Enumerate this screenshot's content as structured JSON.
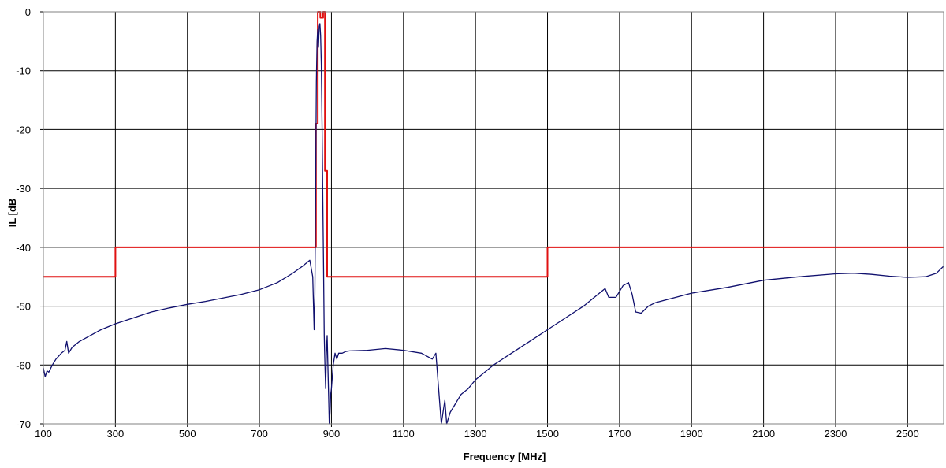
{
  "chart_data": {
    "type": "line",
    "title": "",
    "xlabel": "Frequency [MHz]",
    "ylabel": "IL [dB",
    "xlim": [
      100,
      2600
    ],
    "ylim": [
      -70,
      0
    ],
    "x_ticks": [
      100,
      300,
      500,
      700,
      900,
      1100,
      1300,
      1500,
      1700,
      1900,
      2100,
      2300,
      2500
    ],
    "y_ticks": [
      0,
      -10,
      -20,
      -30,
      -40,
      -50,
      -60,
      -70
    ],
    "grid": true,
    "legend": "none",
    "series": [
      {
        "color": "#e01010",
        "x": [
          100,
          300,
          300,
          857,
          857,
          862,
          862,
          869,
          869,
          877,
          877,
          882,
          882,
          888,
          888,
          1500,
          1500,
          2600
        ],
        "y": [
          -45,
          -45,
          -40,
          -40,
          -19,
          -19,
          0,
          0,
          -1,
          -1,
          0,
          0,
          -27,
          -27,
          -45,
          -45,
          -40,
          -40
        ]
      },
      {
        "color": "#10106e",
        "x": [
          100,
          105,
          110,
          115,
          125,
          135,
          150,
          160,
          165,
          170,
          180,
          200,
          230,
          260,
          300,
          350,
          400,
          450,
          500,
          550,
          600,
          650,
          700,
          750,
          790,
          820,
          840,
          848,
          852,
          854,
          856,
          858,
          860,
          862,
          864,
          866,
          868,
          870,
          872,
          874,
          876,
          878,
          880,
          882,
          884,
          886,
          888,
          890,
          892,
          894,
          896,
          898,
          900,
          905,
          910,
          915,
          920,
          930,
          940,
          950,
          1000,
          1050,
          1100,
          1150,
          1180,
          1190,
          1195,
          1200,
          1205,
          1210,
          1215,
          1220,
          1230,
          1240,
          1250,
          1260,
          1270,
          1280,
          1300,
          1350,
          1400,
          1450,
          1500,
          1550,
          1600,
          1640,
          1660,
          1670,
          1690,
          1710,
          1725,
          1735,
          1745,
          1760,
          1780,
          1800,
          1850,
          1900,
          2000,
          2100,
          2200,
          2300,
          2350,
          2400,
          2450,
          2500,
          2550,
          2580,
          2600
        ],
        "y": [
          -60.5,
          -62,
          -61,
          -61.2,
          -60,
          -59,
          -58,
          -57.5,
          -56,
          -58,
          -57,
          -56,
          -55,
          -54,
          -53,
          -52,
          -51,
          -50.3,
          -49.7,
          -49.2,
          -48.6,
          -48,
          -47.2,
          -46,
          -44.5,
          -43.2,
          -42.2,
          -45,
          -54,
          -48,
          -32,
          -12,
          -5,
          -3,
          -6,
          -2.5,
          -2,
          -4,
          -9,
          -20,
          -32,
          -43,
          -55,
          -60,
          -64,
          -58,
          -55,
          -60,
          -65,
          -70,
          -68,
          -65,
          -64,
          -60,
          -58,
          -59,
          -58,
          -58,
          -57.7,
          -57.6,
          -57.5,
          -57.2,
          -57.5,
          -58,
          -59,
          -58,
          -62,
          -66,
          -70,
          -68,
          -66,
          -70,
          -68,
          -67,
          -66,
          -65,
          -64.5,
          -64,
          -62.5,
          -60,
          -58,
          -56,
          -54,
          -52,
          -50,
          -48,
          -47,
          -48.5,
          -48.5,
          -46.5,
          -46,
          -48,
          -51,
          -51.2,
          -50,
          -49.4,
          -48.6,
          -47.8,
          -46.8,
          -45.6,
          -45,
          -44.5,
          -44.4,
          -44.6,
          -44.9,
          -45.1,
          -45,
          -44.4,
          -43.2
        ]
      }
    ]
  }
}
